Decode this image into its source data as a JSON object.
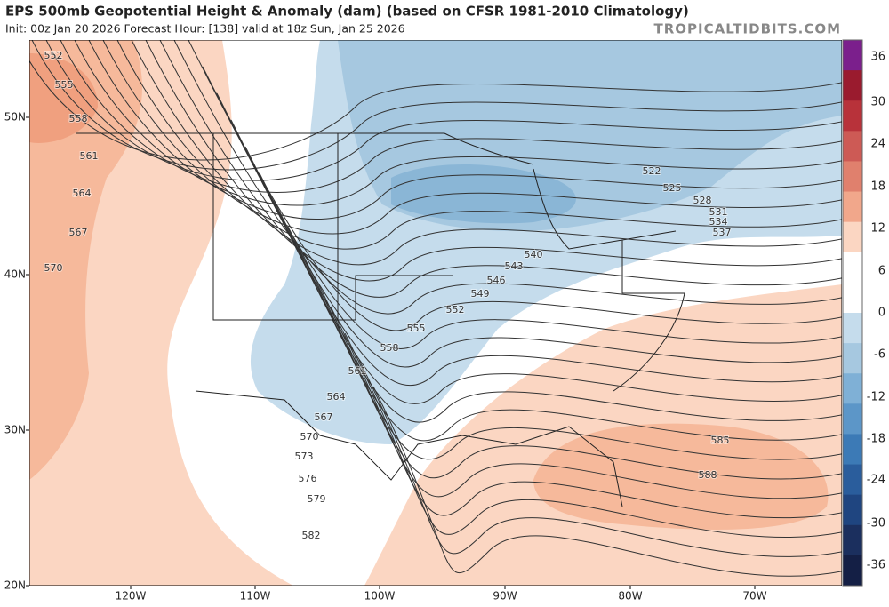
{
  "header": {
    "title": "EPS 500mb Geopotential Height & Anomaly (dam) (based on CFSR 1981-2010 Climatology)",
    "subtitle": "Init: 00z Jan 20 2026   Forecast Hour: [138]   valid at 18z Sun, Jan 25 2026",
    "source": "TROPICALTIDBITS.COM"
  },
  "map": {
    "lat_labels": [
      "50N",
      "40N",
      "30N",
      "20N"
    ],
    "lon_labels": [
      "120W",
      "110W",
      "100W",
      "90W",
      "80W",
      "70W"
    ],
    "contour_labels": [
      "552",
      "555",
      "558",
      "561",
      "564",
      "567",
      "570",
      "522",
      "525",
      "528",
      "531",
      "534",
      "537",
      "540",
      "543",
      "546",
      "549",
      "552",
      "555",
      "558",
      "561",
      "564",
      "567",
      "570",
      "573",
      "576",
      "579",
      "582",
      "585",
      "588"
    ]
  },
  "colorbar": {
    "labels": [
      "36",
      "30",
      "24",
      "18",
      "12",
      "6",
      "0",
      "-6",
      "-12",
      "-18",
      "-24",
      "-30",
      "-36"
    ]
  }
}
